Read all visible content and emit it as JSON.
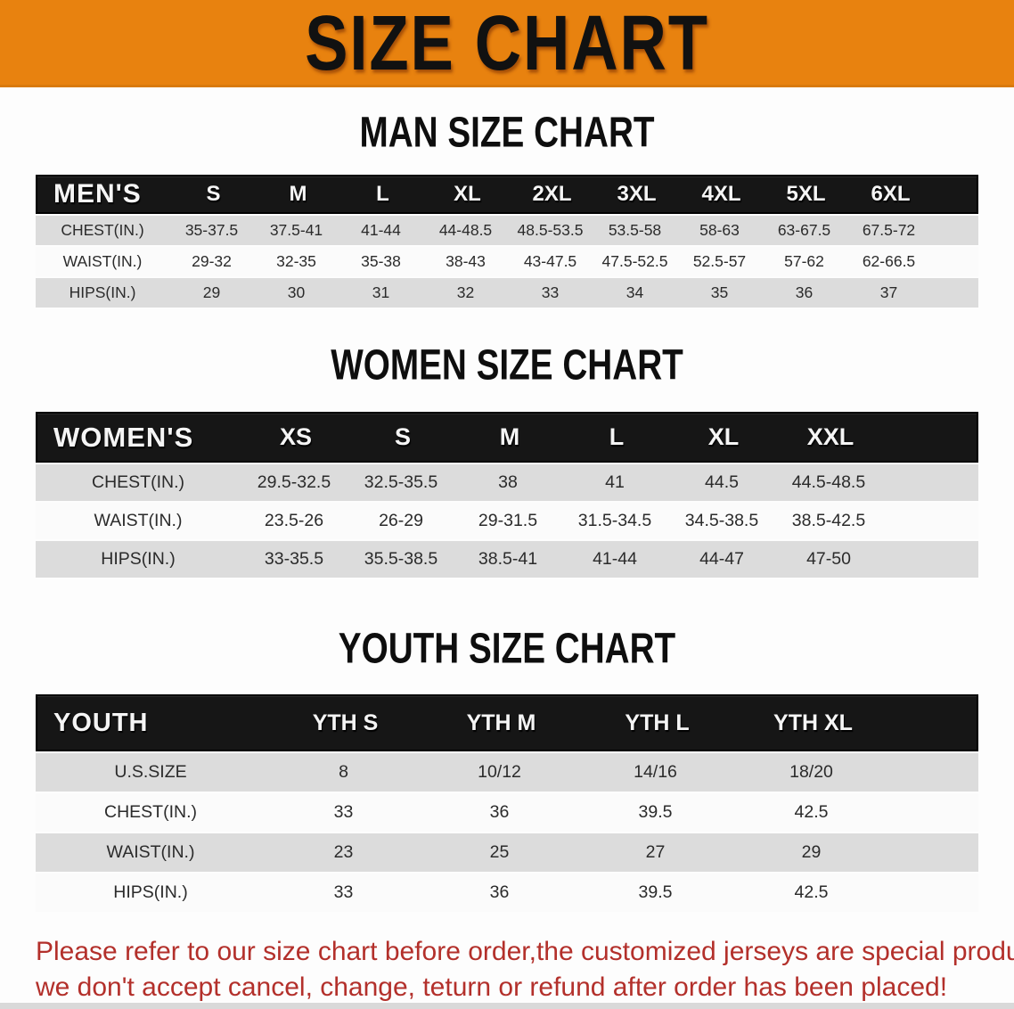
{
  "banner": {
    "title": "SIZE CHART"
  },
  "colors": {
    "banner_orange": "#E8820F",
    "table_header_black": "#161616",
    "row_shade_gray": "#DCDCDC",
    "disclaimer_red": "#B3302B"
  },
  "sections": [
    {
      "heading": "MAN SIZE CHART",
      "table": {
        "header_label": "MEN'S",
        "columns": [
          "S",
          "M",
          "L",
          "XL",
          "2XL",
          "3XL",
          "4XL",
          "5XL",
          "6XL"
        ],
        "rows": [
          {
            "label": "CHEST(IN.)",
            "values": [
              "35-37.5",
              "37.5-41",
              "41-44",
              "44-48.5",
              "48.5-53.5",
              "53.5-58",
              "58-63",
              "63-67.5",
              "67.5-72"
            ]
          },
          {
            "label": "WAIST(IN.)",
            "values": [
              "29-32",
              "32-35",
              "35-38",
              "38-43",
              "43-47.5",
              "47.5-52.5",
              "52.5-57",
              "57-62",
              "62-66.5"
            ]
          },
          {
            "label": "HIPS(IN.)",
            "values": [
              "29",
              "30",
              "31",
              "32",
              "33",
              "34",
              "35",
              "36",
              "37"
            ]
          }
        ]
      }
    },
    {
      "heading": "WOMEN SIZE CHART",
      "table": {
        "header_label": "WOMEN'S",
        "columns": [
          "XS",
          "S",
          "M",
          "L",
          "XL",
          "XXL"
        ],
        "rows": [
          {
            "label": "CHEST(IN.)",
            "values": [
              "29.5-32.5",
              "32.5-35.5",
              "38",
              "41",
              "44.5",
              "44.5-48.5"
            ]
          },
          {
            "label": "WAIST(IN.)",
            "values": [
              "23.5-26",
              "26-29",
              "29-31.5",
              "31.5-34.5",
              "34.5-38.5",
              "38.5-42.5"
            ]
          },
          {
            "label": "HIPS(IN.)",
            "values": [
              "33-35.5",
              "35.5-38.5",
              "38.5-41",
              "41-44",
              "44-47",
              "47-50"
            ]
          }
        ]
      }
    },
    {
      "heading": "YOUTH SIZE CHART",
      "table": {
        "header_label": "YOUTH",
        "columns": [
          "YTH S",
          "YTH M",
          "YTH L",
          "YTH XL"
        ],
        "rows": [
          {
            "label": "U.S.SIZE",
            "values": [
              "8",
              "10/12",
              "14/16",
              "18/20"
            ]
          },
          {
            "label": "CHEST(IN.)",
            "values": [
              "33",
              "36",
              "39.5",
              "42.5"
            ]
          },
          {
            "label": "WAIST(IN.)",
            "values": [
              "23",
              "25",
              "27",
              "29"
            ]
          },
          {
            "label": "HIPS(IN.)",
            "values": [
              "33",
              "36",
              "39.5",
              "42.5"
            ]
          }
        ]
      }
    }
  ],
  "disclaimer": {
    "line1": "Please refer to our size chart before order,the customized jerseys are special products,",
    "line2": "we don't accept cancel, change, teturn or refund after order has been placed!"
  }
}
